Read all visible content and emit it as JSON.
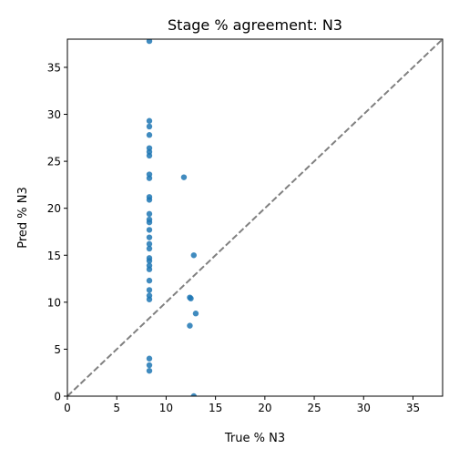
{
  "chart_data": {
    "type": "scatter",
    "title": "Stage % agreement: N3",
    "xlabel": "True % N3",
    "ylabel": "Pred % N3",
    "xlim": [
      0,
      38
    ],
    "ylim": [
      0,
      38
    ],
    "xticks": [
      0,
      5,
      10,
      15,
      20,
      25,
      30,
      35
    ],
    "yticks": [
      0,
      5,
      10,
      15,
      20,
      25,
      30,
      35
    ],
    "grid": false,
    "reference_line": "y = x",
    "colors": {
      "points": "#1f77b4",
      "reference": "#808080"
    },
    "points": [
      {
        "x": 8.3,
        "y": 37.8
      },
      {
        "x": 8.3,
        "y": 29.3
      },
      {
        "x": 8.3,
        "y": 28.7
      },
      {
        "x": 8.3,
        "y": 27.8
      },
      {
        "x": 8.3,
        "y": 26.4
      },
      {
        "x": 8.3,
        "y": 26.0
      },
      {
        "x": 8.3,
        "y": 25.6
      },
      {
        "x": 8.3,
        "y": 23.6
      },
      {
        "x": 8.3,
        "y": 23.2
      },
      {
        "x": 11.8,
        "y": 23.3
      },
      {
        "x": 8.3,
        "y": 21.2
      },
      {
        "x": 8.3,
        "y": 20.9
      },
      {
        "x": 8.3,
        "y": 19.4
      },
      {
        "x": 8.3,
        "y": 18.8
      },
      {
        "x": 8.3,
        "y": 18.5
      },
      {
        "x": 8.3,
        "y": 17.7
      },
      {
        "x": 8.3,
        "y": 16.9
      },
      {
        "x": 8.3,
        "y": 16.2
      },
      {
        "x": 8.3,
        "y": 15.7
      },
      {
        "x": 12.8,
        "y": 15.0
      },
      {
        "x": 8.3,
        "y": 14.7
      },
      {
        "x": 8.3,
        "y": 14.4
      },
      {
        "x": 8.3,
        "y": 13.9
      },
      {
        "x": 8.3,
        "y": 13.5
      },
      {
        "x": 8.3,
        "y": 12.3
      },
      {
        "x": 8.3,
        "y": 11.3
      },
      {
        "x": 8.3,
        "y": 10.7
      },
      {
        "x": 8.3,
        "y": 10.3
      },
      {
        "x": 12.4,
        "y": 10.5
      },
      {
        "x": 12.5,
        "y": 10.4
      },
      {
        "x": 13.0,
        "y": 8.8
      },
      {
        "x": 12.4,
        "y": 7.5
      },
      {
        "x": 8.3,
        "y": 4.0
      },
      {
        "x": 8.3,
        "y": 3.3
      },
      {
        "x": 8.3,
        "y": 2.7
      },
      {
        "x": 12.8,
        "y": 0.0
      }
    ]
  }
}
